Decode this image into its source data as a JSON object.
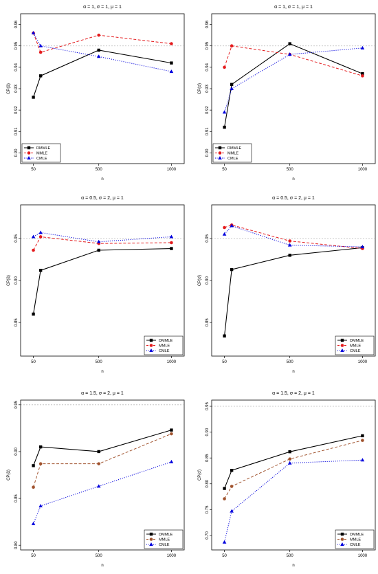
{
  "figure": {
    "colors": {
      "DMMLE": "#000000",
      "MMLE_red": "#e41a1c",
      "MMLE_brown": "#a0522d",
      "CMLE": "#0000dd",
      "ref_line": "#bbbbbb"
    }
  },
  "chart_data": [
    {
      "type": "line",
      "title": "α = 1, σ = 1, μ = 1",
      "xlabel": "n",
      "ylabel": "CP(ᾱ)",
      "x": [
        50,
        100,
        500,
        1000
      ],
      "xticks": [
        "50",
        "500",
        "1000"
      ],
      "xtick_values": [
        50,
        500,
        1000
      ],
      "ylim": [
        0.895,
        0.965
      ],
      "yticks": [
        "0.90",
        "0.91",
        "0.92",
        "0.93",
        "0.94",
        "0.95",
        "0.96"
      ],
      "ytick_values": [
        0.9,
        0.91,
        0.92,
        0.93,
        0.94,
        0.95,
        0.96
      ],
      "reference_line": 0.95,
      "legend_position": "bottom-left",
      "series": [
        {
          "name": "DMMLE",
          "values": [
            0.926,
            0.936,
            0.948,
            0.942
          ],
          "color": "#000000",
          "marker": "square",
          "dash": "solid"
        },
        {
          "name": "MMLE",
          "values": [
            0.956,
            0.947,
            0.955,
            0.951
          ],
          "color": "#e41a1c",
          "marker": "circle",
          "dash": "dashed"
        },
        {
          "name": "CMLE",
          "values": [
            0.956,
            0.95,
            0.945,
            0.938
          ],
          "color": "#0000dd",
          "marker": "triangle",
          "dash": "dotted"
        }
      ]
    },
    {
      "type": "line",
      "title": "α = 1, σ = 1, μ = 1",
      "xlabel": "n",
      "ylabel": "CP(σ̄)",
      "x": [
        50,
        100,
        500,
        1000
      ],
      "xticks": [
        "50",
        "500",
        "1000"
      ],
      "xtick_values": [
        50,
        500,
        1000
      ],
      "ylim": [
        0.895,
        0.965
      ],
      "yticks": [
        "0.90",
        "0.91",
        "0.92",
        "0.93",
        "0.94",
        "0.95",
        "0.96"
      ],
      "ytick_values": [
        0.9,
        0.91,
        0.92,
        0.93,
        0.94,
        0.95,
        0.96
      ],
      "reference_line": 0.95,
      "legend_position": "bottom-left",
      "series": [
        {
          "name": "DMMLE",
          "values": [
            0.912,
            0.932,
            0.951,
            0.937
          ],
          "color": "#000000",
          "marker": "square",
          "dash": "solid"
        },
        {
          "name": "MMLE",
          "values": [
            0.94,
            0.95,
            0.946,
            0.936
          ],
          "color": "#e41a1c",
          "marker": "circle",
          "dash": "dashed"
        },
        {
          "name": "CMLE",
          "values": [
            0.919,
            0.93,
            0.946,
            0.949
          ],
          "color": "#0000dd",
          "marker": "triangle",
          "dash": "dotted"
        }
      ]
    },
    {
      "type": "line",
      "title": "α = 0.5, σ = 2, μ = 1",
      "xlabel": "n",
      "ylabel": "CP(ᾱ)",
      "x": [
        50,
        100,
        500,
        1000
      ],
      "xticks": [
        "50",
        "500",
        "1000"
      ],
      "xtick_values": [
        50,
        500,
        1000
      ],
      "ylim": [
        0.81,
        0.99
      ],
      "yticks": [
        "0.85",
        "0.90",
        "0.95"
      ],
      "ytick_values": [
        0.85,
        0.9,
        0.95
      ],
      "reference_line": 0.95,
      "legend_position": "bottom-right",
      "series": [
        {
          "name": "DMMLE",
          "values": [
            0.86,
            0.912,
            0.936,
            0.938
          ],
          "color": "#000000",
          "marker": "square",
          "dash": "solid"
        },
        {
          "name": "MMLE",
          "values": [
            0.936,
            0.952,
            0.944,
            0.945
          ],
          "color": "#e41a1c",
          "marker": "circle",
          "dash": "dashed"
        },
        {
          "name": "CMLE",
          "values": [
            0.952,
            0.957,
            0.946,
            0.952
          ],
          "color": "#0000dd",
          "marker": "triangle",
          "dash": "dotted"
        }
      ]
    },
    {
      "type": "line",
      "title": "α = 0.5, σ = 2, μ = 1",
      "xlabel": "n",
      "ylabel": "CP(σ̄)",
      "x": [
        50,
        100,
        500,
        1000
      ],
      "xticks": [
        "50",
        "500",
        "1000"
      ],
      "xtick_values": [
        50,
        500,
        1000
      ],
      "ylim": [
        0.81,
        0.99
      ],
      "yticks": [
        "0.85",
        "0.90",
        "0.95"
      ],
      "ytick_values": [
        0.85,
        0.9,
        0.95
      ],
      "reference_line": 0.95,
      "legend_position": "bottom-right",
      "series": [
        {
          "name": "DMMLE",
          "values": [
            0.834,
            0.913,
            0.93,
            0.939
          ],
          "color": "#000000",
          "marker": "square",
          "dash": "solid"
        },
        {
          "name": "MMLE",
          "values": [
            0.963,
            0.966,
            0.947,
            0.938
          ],
          "color": "#e41a1c",
          "marker": "circle",
          "dash": "dashed"
        },
        {
          "name": "CMLE",
          "values": [
            0.955,
            0.965,
            0.942,
            0.94
          ],
          "color": "#0000dd",
          "marker": "triangle",
          "dash": "dotted"
        }
      ]
    },
    {
      "type": "line",
      "title": "α = 1.5, σ = 2, μ = 1",
      "xlabel": "n",
      "ylabel": "CP(ᾱ)",
      "x": [
        50,
        100,
        500,
        1000
      ],
      "xticks": [
        "50",
        "500",
        "1000"
      ],
      "xtick_values": [
        50,
        500,
        1000
      ],
      "ylim": [
        0.795,
        0.955
      ],
      "yticks": [
        "0.80",
        "0.85",
        "0.90",
        "0.95"
      ],
      "ytick_values": [
        0.8,
        0.85,
        0.9,
        0.95
      ],
      "reference_line": 0.95,
      "legend_position": "bottom-right",
      "series": [
        {
          "name": "DMMLE",
          "values": [
            0.885,
            0.905,
            0.9,
            0.923
          ],
          "color": "#000000",
          "marker": "square",
          "dash": "solid"
        },
        {
          "name": "MMLE",
          "values": [
            0.862,
            0.887,
            0.887,
            0.919
          ],
          "color": "#a0522d",
          "marker": "circle",
          "dash": "dashed"
        },
        {
          "name": "CMLE",
          "values": [
            0.823,
            0.842,
            0.863,
            0.889
          ],
          "color": "#0000dd",
          "marker": "triangle",
          "dash": "dotted"
        }
      ]
    },
    {
      "type": "line",
      "title": "α = 1.5, σ = 2, μ = 1",
      "xlabel": "n",
      "ylabel": "CP(σ̄)",
      "x": [
        50,
        100,
        500,
        1000
      ],
      "xticks": [
        "50",
        "500",
        "1000"
      ],
      "xtick_values": [
        50,
        500,
        1000
      ],
      "ylim": [
        0.672,
        0.962
      ],
      "yticks": [
        "0.70",
        "0.75",
        "0.80",
        "0.85",
        "0.90",
        "0.95"
      ],
      "ytick_values": [
        0.7,
        0.75,
        0.8,
        0.85,
        0.9,
        0.95
      ],
      "reference_line": 0.95,
      "legend_position": "bottom-right",
      "series": [
        {
          "name": "DMMLE",
          "values": [
            0.791,
            0.826,
            0.862,
            0.893
          ],
          "color": "#000000",
          "marker": "square",
          "dash": "solid"
        },
        {
          "name": "MMLE",
          "values": [
            0.771,
            0.795,
            0.848,
            0.884
          ],
          "color": "#a0522d",
          "marker": "circle",
          "dash": "dashed"
        },
        {
          "name": "CMLE",
          "values": [
            0.687,
            0.747,
            0.84,
            0.846
          ],
          "color": "#0000dd",
          "marker": "triangle",
          "dash": "dotted"
        }
      ]
    }
  ]
}
